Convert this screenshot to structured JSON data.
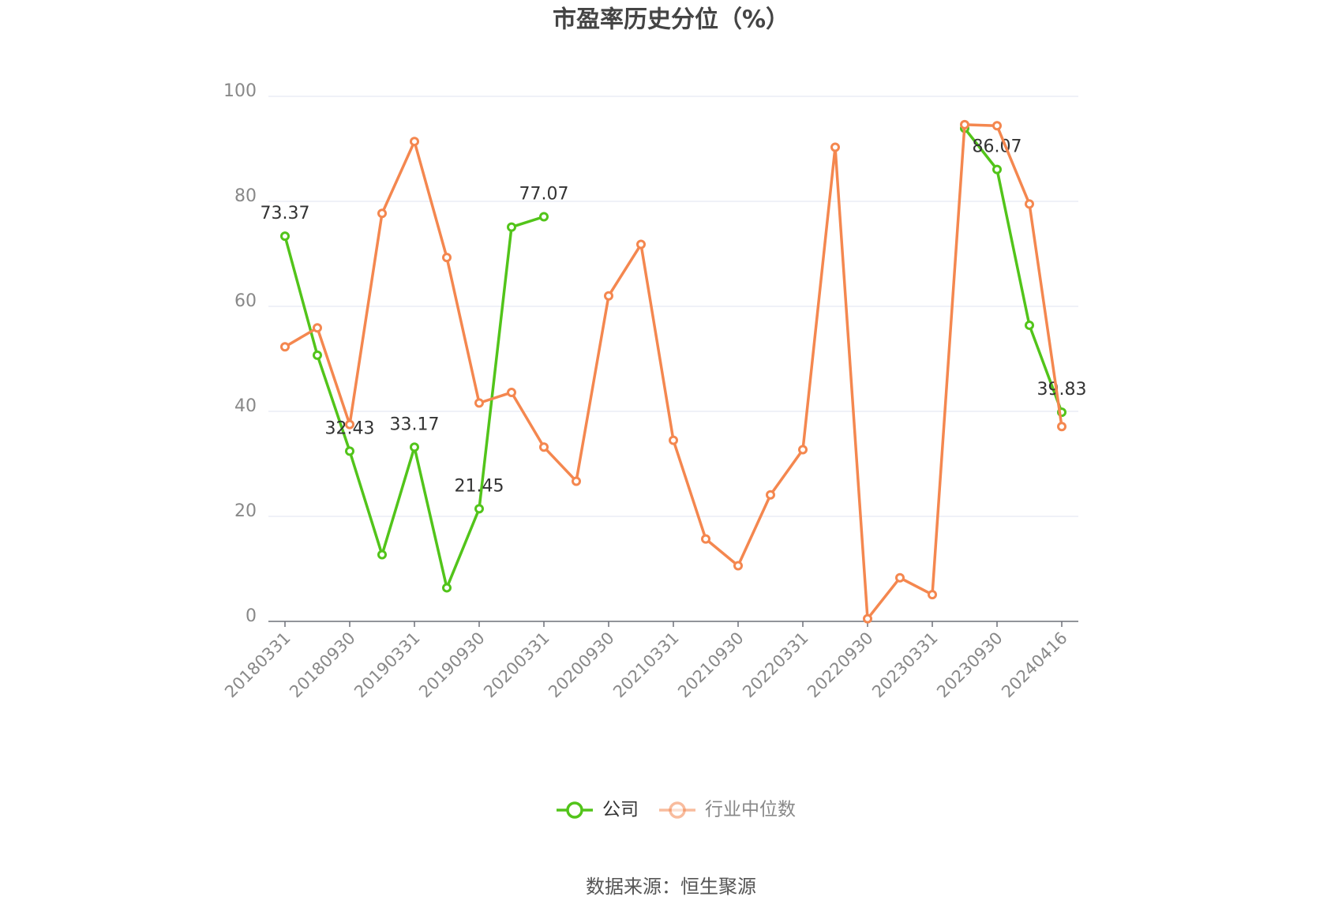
{
  "chart_data": {
    "type": "line",
    "title": "市盈率历史分位（%）",
    "source": "数据来源：恒生聚源",
    "categories": [
      "20180331",
      null,
      "20180930",
      null,
      "20190331",
      null,
      "20190930",
      null,
      "20200331",
      null,
      "20200930",
      null,
      "20210331",
      null,
      "20210930",
      null,
      "20220331",
      null,
      "20220930",
      null,
      "20230331",
      null,
      "20230930",
      null,
      "20240416"
    ],
    "series": [
      {
        "name": "公司",
        "color": "#52c41a",
        "values": [
          73.37,
          50.7,
          32.43,
          12.7,
          33.17,
          6.4,
          21.45,
          75.1,
          77.07,
          null,
          null,
          null,
          null,
          null,
          null,
          null,
          null,
          null,
          null,
          null,
          null,
          93.9,
          86.07,
          56.4,
          39.83
        ],
        "value_labels": [
          "73.37",
          null,
          "32.43",
          null,
          "33.17",
          null,
          "21.45",
          null,
          "77.07",
          null,
          null,
          null,
          null,
          null,
          null,
          null,
          null,
          null,
          null,
          null,
          null,
          null,
          "86.07",
          null,
          "39.83"
        ]
      },
      {
        "name": "行业中位数",
        "color": "#f4874f",
        "values": [
          52.3,
          55.9,
          37.5,
          77.7,
          91.4,
          69.3,
          41.6,
          43.6,
          33.2,
          26.7,
          62.0,
          71.8,
          34.5,
          15.7,
          10.6,
          24.1,
          32.7,
          90.3,
          0.5,
          8.3,
          5.1,
          94.6,
          94.4,
          79.5,
          37.1
        ]
      }
    ],
    "ylim": [
      0,
      100
    ],
    "yticks": [
      0,
      20,
      40,
      60,
      80,
      100
    ],
    "grid": true
  }
}
